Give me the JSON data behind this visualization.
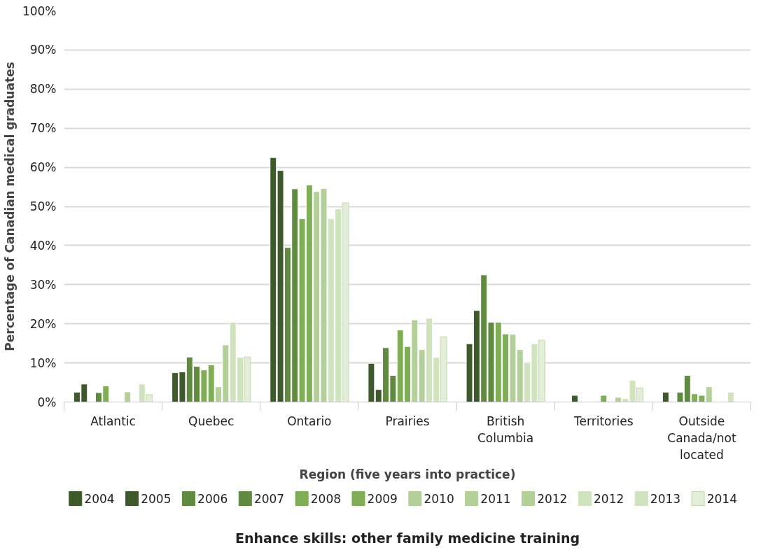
{
  "chart_data": {
    "type": "bar",
    "title": "Enhance skills: other family medicine training",
    "xlabel": "Region (five years into practice)",
    "ylabel": "Percentage of Canadian medical graduates",
    "categories": [
      "Atlantic",
      "Quebec",
      "Ontario",
      "Prairies",
      "British Columbia",
      "Territories",
      "Outside Canada/not located"
    ],
    "series": [
      {
        "name": "2004",
        "color": "#3e5a2b",
        "values": [
          2.5,
          7.5,
          62.5,
          9.9,
          14.9,
          null,
          2.5
        ]
      },
      {
        "name": "2005",
        "color": "#3e5a2b",
        "values": [
          4.6,
          7.7,
          59.2,
          3.2,
          23.4,
          1.7,
          null
        ]
      },
      {
        "name": "2006",
        "color": "#5f8a3f",
        "values": [
          null,
          11.5,
          39.5,
          13.9,
          32.5,
          null,
          2.5
        ]
      },
      {
        "name": "2007",
        "color": "#5f8a3f",
        "values": [
          2.4,
          9.1,
          54.5,
          6.8,
          20.4,
          null,
          6.8
        ]
      },
      {
        "name": "2008",
        "color": "#7fae57",
        "values": [
          4.1,
          8.2,
          46.9,
          18.4,
          20.4,
          null,
          2.1
        ]
      },
      {
        "name": "2009",
        "color": "#7fae57",
        "values": [
          null,
          9.5,
          55.5,
          14.2,
          17.4,
          1.7,
          1.7
        ]
      },
      {
        "name": "2010",
        "color": "#b3d098",
        "values": [
          null,
          3.9,
          53.8,
          21.0,
          17.3,
          null,
          3.9
        ]
      },
      {
        "name": "2011",
        "color": "#b3d098",
        "values": [
          2.6,
          14.6,
          54.6,
          13.4,
          13.4,
          1.2,
          null
        ]
      },
      {
        "name": "2012",
        "color": "#b3d098",
        "values": [
          null,
          null,
          null,
          null,
          null,
          null,
          null
        ]
      },
      {
        "name": "2012",
        "color": "#cfe3bd",
        "values": [
          null,
          20.4,
          46.9,
          21.4,
          10.1,
          0.9,
          null
        ]
      },
      {
        "name": "2013",
        "color": "#cfe3bd",
        "values": [
          4.6,
          11.4,
          49.4,
          11.4,
          14.9,
          5.6,
          2.5
        ]
      },
      {
        "name": "2014",
        "color": "#e3eed8",
        "values": [
          1.9,
          11.5,
          50.9,
          16.7,
          15.8,
          3.6,
          null
        ]
      }
    ],
    "ylim": [
      0,
      100
    ],
    "yticks": [
      {
        "value": 0,
        "label": "0%"
      },
      {
        "value": 10,
        "label": "10%"
      },
      {
        "value": 20,
        "label": "20%"
      },
      {
        "value": 30,
        "label": "30%"
      },
      {
        "value": 40,
        "label": "40%"
      },
      {
        "value": 50,
        "label": "50%"
      },
      {
        "value": 60,
        "label": "60%"
      },
      {
        "value": 70,
        "label": "70%"
      },
      {
        "value": 80,
        "label": "80%"
      },
      {
        "value": 90,
        "label": "90%"
      },
      {
        "value": 100,
        "label": "100%"
      }
    ],
    "grid": "y",
    "legend": "bottom"
  }
}
